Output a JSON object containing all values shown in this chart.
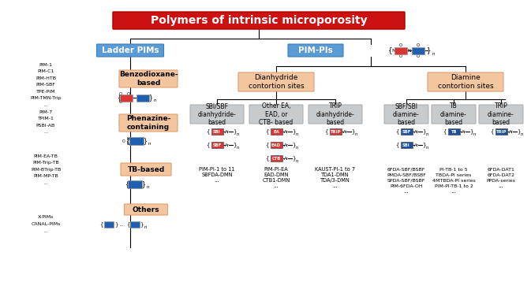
{
  "title": "Polymers of intrinsic microporosity",
  "title_color": "#ffffff",
  "title_bg": "#cc1111",
  "bg_color": "#ffffff",
  "ladder_pims_color": "#5b9bd5",
  "pim_pis_color": "#5b9bd5",
  "orange_box_color": "#f4c6a0",
  "gray_box_color": "#c8cbcd",
  "red_box_color": "#d93535",
  "blue_box_color": "#2060b0",
  "left_labels": {
    "benzodioxane": [
      "PIM-1",
      "PIM-C1",
      "PIM-HTB",
      "PIM-SBF",
      "TPE-PIM",
      "PIM-TMN-Trip",
      "..."
    ],
    "phenazine": [
      "PIM-7",
      "TPIM-1",
      "PSBI-AB",
      "..."
    ],
    "tb_based": [
      "PIM-EA-TB",
      "PIM-Trip-TB",
      "PIM-BTrip-TB",
      "PIM-MP-TB",
      "..."
    ],
    "others": [
      "X-PIMs",
      "CANAL-PIMs",
      "..."
    ]
  },
  "dianhydride_labels": [
    [
      "PIM-PI-1 to 11",
      "SBFDA-DMN",
      "..."
    ],
    [
      "PIM-PI-EA",
      "EAD-DMN",
      "CTB1-DMN",
      "..."
    ],
    [
      "KAUST-PI-1 to 7",
      "TDA1-DMN",
      "TDA/3-DMN",
      "..."
    ]
  ],
  "diamine_labels": [
    [
      "6FDA-SBF/BSBF",
      "PMDA-SBF/BSBF",
      "SPDA-SBF/BSBF",
      "PIM-6FDA-OH",
      "..."
    ],
    [
      "PI-TB-1 to 5",
      "TBDA-PI series",
      "4MTBDA-PI series",
      "PIM-PI-TB-1 to 2",
      "..."
    ],
    [
      "6FDA-DAT1",
      "6FDA-DAT2",
      "PPDA-series",
      "..."
    ]
  ]
}
